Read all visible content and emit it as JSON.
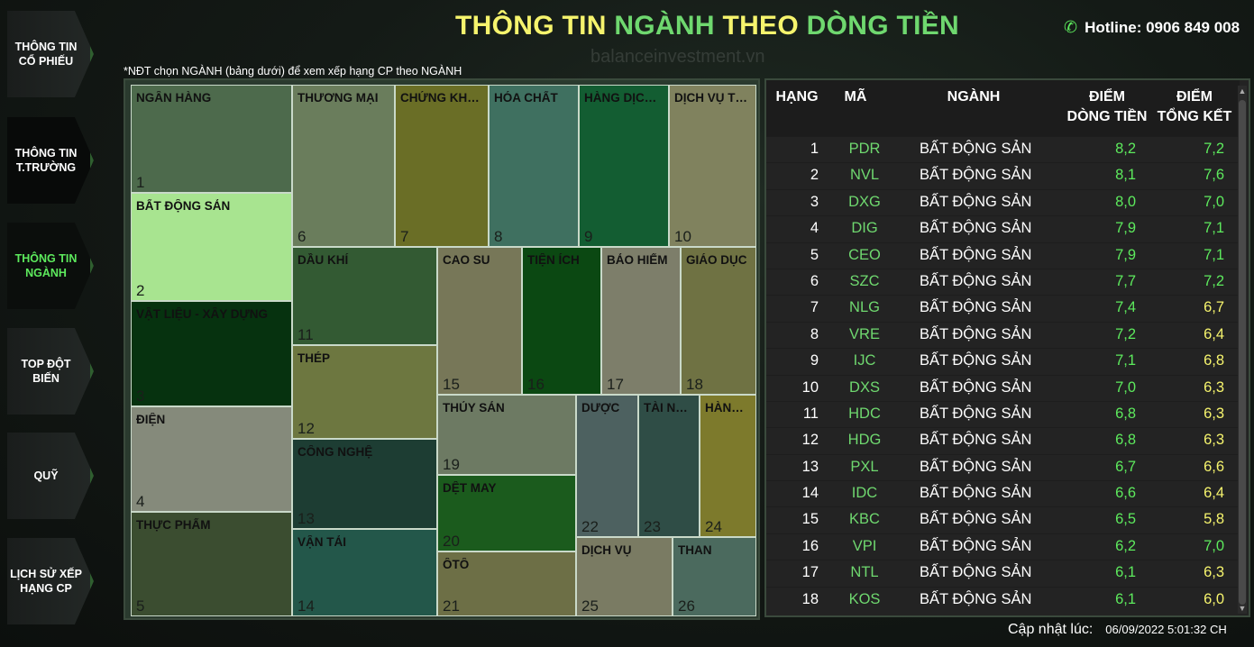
{
  "nav": [
    {
      "label": "THÔNG TIN CỔ PHIẾU"
    },
    {
      "label": "THÔNG TIN T.TRƯỜNG"
    },
    {
      "label": "THÔNG TIN NGÀNH"
    },
    {
      "label": "TOP ĐỘT BIẾN"
    },
    {
      "label": "QUỸ"
    },
    {
      "label": "LỊCH SỬ XẾP HẠNG CP"
    }
  ],
  "title": {
    "part1": "THÔNG TIN ",
    "part2": "NGÀNH ",
    "part3": "THEO ",
    "part4": "DÒNG TIỀN"
  },
  "hotline": "Hotline: 0906 849 008",
  "watermark": "balanceinvestment.vn",
  "hint": "*NĐT chọn NGÀNH (bảng dưới) để xem xếp hạng CP theo NGÀNH",
  "colors": {
    "accent_green": "#5dea5d",
    "accent_yellow": "#f6f46d"
  },
  "treemap": [
    {
      "name": "NGÂN HÀNG",
      "num": "1",
      "color": "#4d6a4c"
    },
    {
      "name": "BẤT ĐỘNG SẢN",
      "num": "2",
      "color": "#a8e490"
    },
    {
      "name": "VẬT LIỆU - XÂY DỰNG",
      "num": "3",
      "color": "#06320f"
    },
    {
      "name": "ĐIỆN",
      "num": "4",
      "color": "#858a7b"
    },
    {
      "name": "THỰC PHẨM",
      "num": "5",
      "color": "#3b4d30"
    },
    {
      "name": "THƯƠNG MẠI",
      "num": "6",
      "color": "#6a7d5c"
    },
    {
      "name": "CHỨNG KHOÁN",
      "num": "7",
      "color": "#6a6e26"
    },
    {
      "name": "HÓA CHẤT",
      "num": "8",
      "color": "#3f7060"
    },
    {
      "name": "HÀNG DỊCH VỤ",
      "num": "9",
      "color": "#135d32"
    },
    {
      "name": "DỊCH VỤ TÀI CHÍNH",
      "num": "10",
      "color": "#80825e"
    },
    {
      "name": "DẦU KHÍ",
      "num": "11",
      "color": "#335a33"
    },
    {
      "name": "CAO SU",
      "num": "15",
      "color": "#777758"
    },
    {
      "name": "TIỆN ÍCH",
      "num": "16",
      "color": "#0b4812"
    },
    {
      "name": "BẢO HIỂM",
      "num": "17",
      "color": "#7d7e6a"
    },
    {
      "name": "GIÁO DỤC",
      "num": "18",
      "color": "#6f7243"
    },
    {
      "name": "THÉP",
      "num": "12",
      "color": "#6d7740"
    },
    {
      "name": "THỦY SẢN",
      "num": "19",
      "color": "#6d7a63"
    },
    {
      "name": "DƯỢC",
      "num": "22",
      "color": "#4d6160"
    },
    {
      "name": "TÀI NGUYÊN",
      "num": "23",
      "color": "#2f4d46"
    },
    {
      "name": "HÀNG HÓA",
      "num": "24",
      "color": "#7d7a2c"
    },
    {
      "name": "CÔNG NGHỆ",
      "num": "13",
      "color": "#1d3d33"
    },
    {
      "name": "DỆT MAY",
      "num": "20",
      "color": "#1b5b1d"
    },
    {
      "name": "VẬN TẢI",
      "num": "14",
      "color": "#23574a"
    },
    {
      "name": "ÔTÔ",
      "num": "21",
      "color": "#6d6f46"
    },
    {
      "name": "DỊCH VỤ",
      "num": "25",
      "color": "#7a7b63"
    },
    {
      "name": "THAN",
      "num": "26",
      "color": "#4b6a5e"
    }
  ],
  "table": {
    "headers": {
      "rank": "HẠNG",
      "code": "MÃ",
      "industry": "NGÀNH",
      "flow_l1": "ĐIỂM",
      "flow_l2": "DÒNG TIỀN",
      "total_l1": "ĐIỂM",
      "total_l2": "TỔNG KẾT"
    },
    "rows": [
      {
        "rank": "1",
        "code": "PDR",
        "industry": "BẤT ĐỘNG SẢN",
        "flow": "8,2",
        "total": "7,2",
        "total_color": "green"
      },
      {
        "rank": "2",
        "code": "NVL",
        "industry": "BẤT ĐỘNG SẢN",
        "flow": "8,1",
        "total": "7,6",
        "total_color": "green"
      },
      {
        "rank": "3",
        "code": "DXG",
        "industry": "BẤT ĐỘNG SẢN",
        "flow": "8,0",
        "total": "7,0",
        "total_color": "green"
      },
      {
        "rank": "4",
        "code": "DIG",
        "industry": "BẤT ĐỘNG SẢN",
        "flow": "7,9",
        "total": "7,1",
        "total_color": "green"
      },
      {
        "rank": "5",
        "code": "CEO",
        "industry": "BẤT ĐỘNG SẢN",
        "flow": "7,9",
        "total": "7,1",
        "total_color": "green"
      },
      {
        "rank": "6",
        "code": "SZC",
        "industry": "BẤT ĐỘNG SẢN",
        "flow": "7,7",
        "total": "7,2",
        "total_color": "green"
      },
      {
        "rank": "7",
        "code": "NLG",
        "industry": "BẤT ĐỘNG SẢN",
        "flow": "7,4",
        "total": "6,7",
        "total_color": "yellow"
      },
      {
        "rank": "8",
        "code": "VRE",
        "industry": "BẤT ĐỘNG SẢN",
        "flow": "7,2",
        "total": "6,4",
        "total_color": "yellow"
      },
      {
        "rank": "9",
        "code": "IJC",
        "industry": "BẤT ĐỘNG SẢN",
        "flow": "7,1",
        "total": "6,8",
        "total_color": "yellow"
      },
      {
        "rank": "10",
        "code": "DXS",
        "industry": "BẤT ĐỘNG SẢN",
        "flow": "7,0",
        "total": "6,3",
        "total_color": "yellow"
      },
      {
        "rank": "11",
        "code": "HDC",
        "industry": "BẤT ĐỘNG SẢN",
        "flow": "6,8",
        "total": "6,3",
        "total_color": "yellow"
      },
      {
        "rank": "12",
        "code": "HDG",
        "industry": "BẤT ĐỘNG SẢN",
        "flow": "6,8",
        "total": "6,3",
        "total_color": "yellow"
      },
      {
        "rank": "13",
        "code": "PXL",
        "industry": "BẤT ĐỘNG SẢN",
        "flow": "6,7",
        "total": "6,6",
        "total_color": "yellow"
      },
      {
        "rank": "14",
        "code": "IDC",
        "industry": "BẤT ĐỘNG SẢN",
        "flow": "6,6",
        "total": "6,4",
        "total_color": "yellow"
      },
      {
        "rank": "15",
        "code": "KBC",
        "industry": "BẤT ĐỘNG SẢN",
        "flow": "6,5",
        "total": "5,8",
        "total_color": "yellow"
      },
      {
        "rank": "16",
        "code": "VPI",
        "industry": "BẤT ĐỘNG SẢN",
        "flow": "6,2",
        "total": "7,0",
        "total_color": "green"
      },
      {
        "rank": "17",
        "code": "NTL",
        "industry": "BẤT ĐỘNG SẢN",
        "flow": "6,1",
        "total": "6,3",
        "total_color": "yellow"
      },
      {
        "rank": "18",
        "code": "KOS",
        "industry": "BẤT ĐỘNG SẢN",
        "flow": "6,1",
        "total": "6,0",
        "total_color": "yellow"
      }
    ]
  },
  "updated": {
    "label": "Cập nhật lúc:",
    "value": "06/09/2022 5:01:32 CH"
  }
}
